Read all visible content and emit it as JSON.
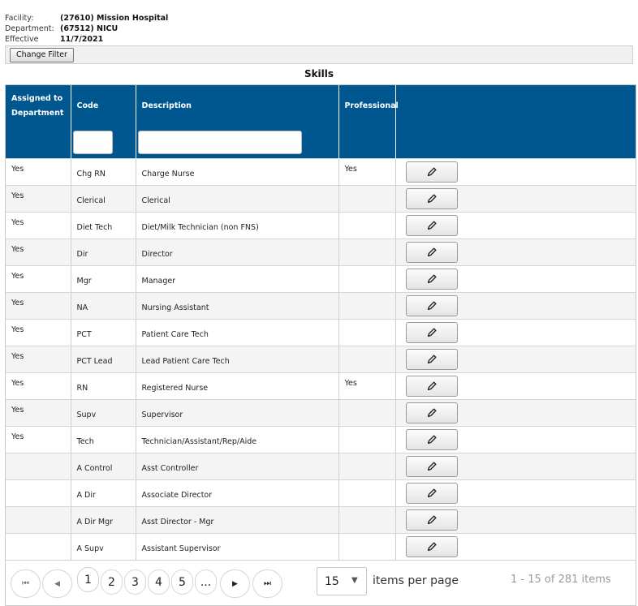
{
  "info": {
    "facility_label": "Facility:",
    "facility_value": "(27610) Mission Hospital",
    "department_label": "Department:",
    "department_value": "(67512) NICU",
    "effective_label": "Effective Date:",
    "effective_value": "11/7/2021"
  },
  "filter_button": "Change Filter",
  "title": "Skills",
  "columns": {
    "assigned_line1": "Assigned to",
    "assigned_line2": "Department",
    "code": "Code",
    "description": "Description",
    "professional": "Professional"
  },
  "icons": {
    "edit": "pencil-icon"
  },
  "colors": {
    "header": "#00568f",
    "alt_row": "#f4f4f4"
  },
  "rows": [
    {
      "assigned": "Yes",
      "code": "Chg RN",
      "description": "Charge Nurse",
      "professional": "Yes"
    },
    {
      "assigned": "Yes",
      "code": "Clerical",
      "description": "Clerical",
      "professional": ""
    },
    {
      "assigned": "Yes",
      "code": "Diet Tech",
      "description": "Diet/Milk Technician (non FNS)",
      "professional": ""
    },
    {
      "assigned": "Yes",
      "code": "Dir",
      "description": "Director",
      "professional": ""
    },
    {
      "assigned": "Yes",
      "code": "Mgr",
      "description": "Manager",
      "professional": ""
    },
    {
      "assigned": "Yes",
      "code": "NA",
      "description": "Nursing Assistant",
      "professional": ""
    },
    {
      "assigned": "Yes",
      "code": "PCT",
      "description": "Patient Care Tech",
      "professional": ""
    },
    {
      "assigned": "Yes",
      "code": "PCT Lead",
      "description": "Lead Patient Care Tech",
      "professional": ""
    },
    {
      "assigned": "Yes",
      "code": "RN",
      "description": "Registered Nurse",
      "professional": "Yes"
    },
    {
      "assigned": "Yes",
      "code": "Supv",
      "description": "Supervisor",
      "professional": ""
    },
    {
      "assigned": "Yes",
      "code": "Tech",
      "description": "Technician/Assistant/Rep/Aide",
      "professional": ""
    },
    {
      "assigned": "",
      "code": "A Control",
      "description": "Asst Controller",
      "professional": ""
    },
    {
      "assigned": "",
      "code": "A Dir",
      "description": "Associate Director",
      "professional": ""
    },
    {
      "assigned": "",
      "code": "A Dir Mgr",
      "description": "Asst Director - Mgr",
      "professional": ""
    },
    {
      "assigned": "",
      "code": "A Supv",
      "description": "Assistant Supervisor",
      "professional": ""
    }
  ],
  "pager": {
    "first": "⏮",
    "prev": "◀",
    "pages": [
      "1",
      "2",
      "3",
      "4",
      "5",
      "..."
    ],
    "current_page": "1",
    "next": "▶",
    "last": "⏭",
    "page_size": "15",
    "items_per_page": "items per page",
    "range": "1 - 15 of 281 items"
  }
}
